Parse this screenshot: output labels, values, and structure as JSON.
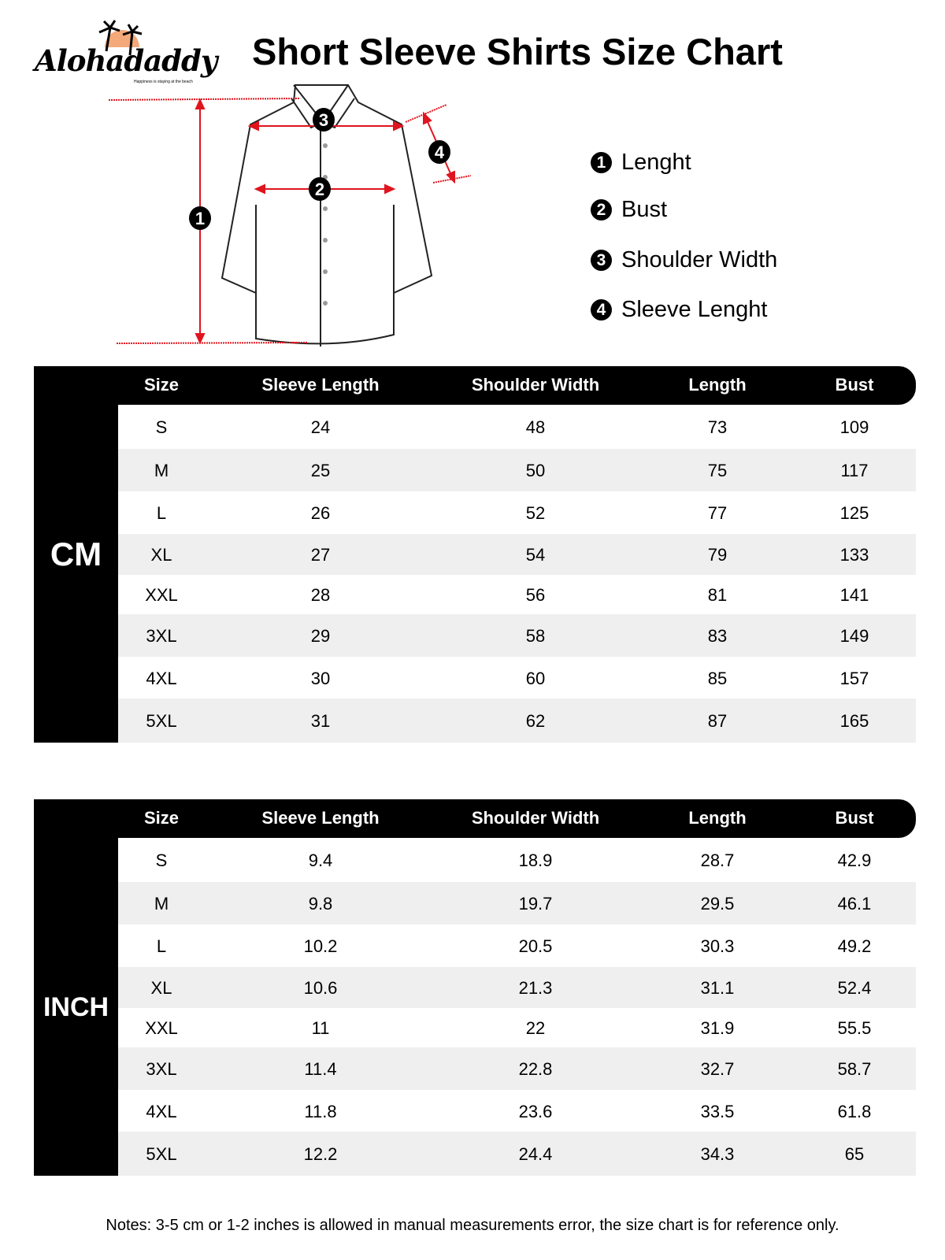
{
  "brand": {
    "name": "Alohadaddy",
    "tagline": "Happiness is staying at the beach",
    "sun_color": "#f4a97a"
  },
  "title": "Short Sleeve Shirts Size Chart",
  "diagram": {
    "markers": [
      "1",
      "2",
      "3",
      "4"
    ],
    "arrow_color": "#e0141e"
  },
  "legend": [
    {
      "num": "1",
      "label": "Lenght"
    },
    {
      "num": "2",
      "label": "Bust"
    },
    {
      "num": "3",
      "label": "Shoulder Width"
    },
    {
      "num": "4",
      "label": "Sleeve Lenght"
    }
  ],
  "columns": [
    "Size",
    "Sleeve Length",
    "Shoulder Width",
    "Length",
    "Bust"
  ],
  "tables": [
    {
      "unit": "CM",
      "rows": [
        [
          "S",
          "24",
          "48",
          "73",
          "109"
        ],
        [
          "M",
          "25",
          "50",
          "75",
          "117"
        ],
        [
          "L",
          "26",
          "52",
          "77",
          "125"
        ],
        [
          "XL",
          "27",
          "54",
          "79",
          "133"
        ],
        [
          "XXL",
          "28",
          "56",
          "81",
          "141"
        ],
        [
          "3XL",
          "29",
          "58",
          "83",
          "149"
        ],
        [
          "4XL",
          "30",
          "60",
          "85",
          "157"
        ],
        [
          "5XL",
          "31",
          "62",
          "87",
          "165"
        ]
      ]
    },
    {
      "unit": "INCH",
      "rows": [
        [
          "S",
          "9.4",
          "18.9",
          "28.7",
          "42.9"
        ],
        [
          "M",
          "9.8",
          "19.7",
          "29.5",
          "46.1"
        ],
        [
          "L",
          "10.2",
          "20.5",
          "30.3",
          "49.2"
        ],
        [
          "XL",
          "10.6",
          "21.3",
          "31.1",
          "52.4"
        ],
        [
          "XXL",
          "11",
          "22",
          "31.9",
          "55.5"
        ],
        [
          "3XL",
          "11.4",
          "22.8",
          "32.7",
          "58.7"
        ],
        [
          "4XL",
          "11.8",
          "23.6",
          "33.5",
          "61.8"
        ],
        [
          "5XL",
          "12.2",
          "24.4",
          "34.3",
          "65"
        ]
      ]
    }
  ],
  "notes": "Notes: 3-5 cm or 1-2 inches is allowed in manual measurements error, the size chart is for reference only."
}
